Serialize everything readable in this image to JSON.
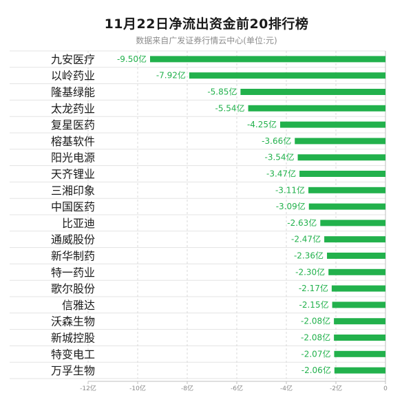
{
  "title": "11月22日净流出资金前20排行榜",
  "subtitle": "数据来自广发证券行情云中心(单位:元)",
  "bar_color": "#22b14c",
  "chart_data": {
    "type": "bar",
    "orientation": "horizontal",
    "title": "11月22日净流出资金前20排行榜",
    "subtitle": "数据来自广发证券行情云中心(单位:元)",
    "categories": [
      "九安医疗",
      "以岭药业",
      "隆基绿能",
      "太龙药业",
      "复星医药",
      "榕基软件",
      "阳光电源",
      "天齐锂业",
      "三湘印象",
      "中国医药",
      "比亚迪",
      "通威股份",
      "新华制药",
      "特一药业",
      "歌尔股份",
      "信雅达",
      "沃森生物",
      "新城控股",
      "特变电工",
      "万孚生物"
    ],
    "values": [
      -9.5,
      -7.92,
      -5.85,
      -5.54,
      -4.25,
      -3.66,
      -3.54,
      -3.47,
      -3.11,
      -3.09,
      -2.63,
      -2.47,
      -2.36,
      -2.3,
      -2.17,
      -2.15,
      -2.08,
      -2.08,
      -2.07,
      -2.06
    ],
    "value_labels": [
      "-9.50亿",
      "-7.92亿",
      "-5.85亿",
      "-5.54亿",
      "-4.25亿",
      "-3.66亿",
      "-3.54亿",
      "-3.47亿",
      "-3.11亿",
      "-3.09亿",
      "-2.63亿",
      "-2.47亿",
      "-2.36亿",
      "-2.30亿",
      "-2.17亿",
      "-2.15亿",
      "-2.08亿",
      "-2.08亿",
      "-2.07亿",
      "-2.06亿"
    ],
    "unit": "亿",
    "xlim": [
      -12,
      0
    ],
    "x_ticks": [
      -12,
      -10,
      -8,
      -6,
      -4,
      -2,
      0
    ],
    "x_tick_labels": [
      "-12亿",
      "-10亿",
      "-8亿",
      "-6亿",
      "-4亿",
      "-2亿",
      "0"
    ],
    "grid": true
  }
}
